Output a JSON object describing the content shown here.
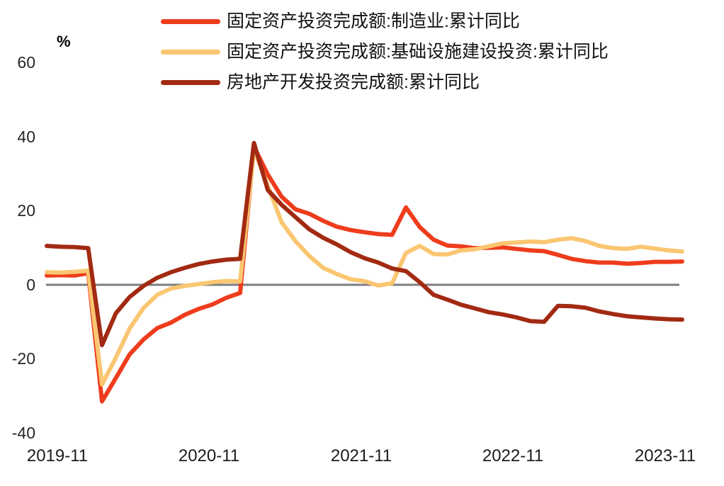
{
  "chart_data": {
    "type": "line",
    "title": "",
    "unit_label": "%",
    "legend_position": "top",
    "grid": false,
    "background": "#FFFFFF",
    "text_color": "#1A1A1A",
    "zero_line_color": "#7E7E7E",
    "ylim": [
      -40,
      60
    ],
    "yticks": [
      "60",
      "40",
      "20",
      "0",
      "-20",
      "-40"
    ],
    "xtick_labels": [
      "2019-11",
      "2020-11",
      "2021-11",
      "2022-11",
      "2023-11"
    ],
    "x_dates": [
      "2019-09",
      "2019-10",
      "2019-11",
      "2019-12",
      "2020-02",
      "2020-03",
      "2020-04",
      "2020-05",
      "2020-06",
      "2020-07",
      "2020-08",
      "2020-09",
      "2020-10",
      "2020-11",
      "2020-12",
      "2021-02",
      "2021-03",
      "2021-04",
      "2021-05",
      "2021-06",
      "2021-07",
      "2021-08",
      "2021-09",
      "2021-10",
      "2021-11",
      "2021-12",
      "2022-02",
      "2022-03",
      "2022-04",
      "2022-05",
      "2022-06",
      "2022-07",
      "2022-08",
      "2022-09",
      "2022-10",
      "2022-11",
      "2022-12",
      "2023-02",
      "2023-03",
      "2023-04",
      "2023-05",
      "2023-06",
      "2023-07",
      "2023-08",
      "2023-09",
      "2023-10",
      "2023-11"
    ],
    "series": [
      {
        "name": "固定资产投资完成额:制造业:累计同比",
        "color": "#EE3C1C",
        "values": [
          2.5,
          2.6,
          2.5,
          3.1,
          -31.5,
          -25.2,
          -18.8,
          -14.8,
          -11.7,
          -10.2,
          -8.1,
          -6.5,
          -5.3,
          -3.5,
          -2.2,
          37.3,
          29.8,
          23.8,
          20.4,
          19.2,
          17.3,
          15.7,
          14.8,
          14.2,
          13.7,
          13.5,
          20.9,
          15.6,
          12.2,
          10.6,
          10.4,
          9.9,
          10.0,
          10.1,
          9.7,
          9.3,
          9.1,
          8.1,
          7.0,
          6.4,
          6.0,
          6.0,
          5.7,
          5.9,
          6.2,
          6.2,
          6.3
        ]
      },
      {
        "name": "固定资产投资完成额:基础设施建设投资:累计同比",
        "color": "#FAC671",
        "values": [
          3.4,
          3.3,
          3.5,
          3.8,
          -26.9,
          -19.7,
          -11.8,
          -6.3,
          -2.7,
          -1.0,
          -0.3,
          0.2,
          0.7,
          1.0,
          0.9,
          36.6,
          26.8,
          16.9,
          11.8,
          7.8,
          4.6,
          2.9,
          1.5,
          1.0,
          -0.2,
          0.4,
          8.6,
          10.5,
          8.3,
          8.2,
          9.3,
          9.6,
          10.4,
          11.2,
          11.4,
          11.7,
          11.5,
          12.2,
          12.6,
          11.8,
          10.5,
          9.9,
          9.7,
          10.3,
          9.8,
          9.3,
          9.0
        ]
      },
      {
        "name": "房地产开发投资完成额:累计同比",
        "color": "#A22A12",
        "values": [
          10.5,
          10.3,
          10.2,
          9.9,
          -16.3,
          -7.7,
          -3.3,
          -0.3,
          1.9,
          3.4,
          4.6,
          5.6,
          6.3,
          6.8,
          7.0,
          38.3,
          25.6,
          21.6,
          18.3,
          15.0,
          12.7,
          10.9,
          8.8,
          7.2,
          6.0,
          4.4,
          3.7,
          0.7,
          -2.7,
          -4.0,
          -5.4,
          -6.4,
          -7.4,
          -8.0,
          -8.8,
          -9.8,
          -10.0,
          -5.7,
          -5.8,
          -6.2,
          -7.2,
          -7.9,
          -8.5,
          -8.8,
          -9.1,
          -9.3,
          -9.4
        ]
      }
    ]
  }
}
